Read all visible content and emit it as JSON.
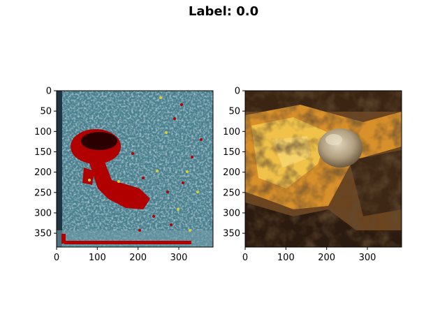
{
  "figure": {
    "title": "Label: 0.0"
  },
  "panels": [
    {
      "name": "left",
      "description_icon": "heatmap-overlay-image",
      "x_ticks": [
        "0",
        "100",
        "200",
        "300"
      ],
      "y_ticks": [
        "0",
        "50",
        "100",
        "150",
        "200",
        "250",
        "300",
        "350"
      ]
    },
    {
      "name": "right",
      "description_icon": "natural-photo-image",
      "x_ticks": [
        "0",
        "100",
        "200",
        "300"
      ],
      "y_ticks": [
        "0",
        "50",
        "100",
        "150",
        "200",
        "250",
        "300",
        "350"
      ]
    }
  ],
  "axis": {
    "x_values": [
      0,
      100,
      200,
      300
    ],
    "y_values": [
      0,
      50,
      100,
      150,
      200,
      250,
      300,
      350
    ],
    "xlim": [
      0,
      384
    ],
    "ylim": [
      384,
      0
    ]
  },
  "colors": {
    "heatmap_base": "#4a7f8e",
    "heatmap_light": "#9fc3cc",
    "heatmap_hot": "#b00000",
    "heatmap_dark": "#2a0000",
    "heatmap_yellow": "#d7d23a",
    "photo_dark": "#2b1a0f",
    "photo_orange": "#d8902a",
    "photo_yellow": "#f0c24a",
    "photo_shell": "#c8b79a"
  }
}
